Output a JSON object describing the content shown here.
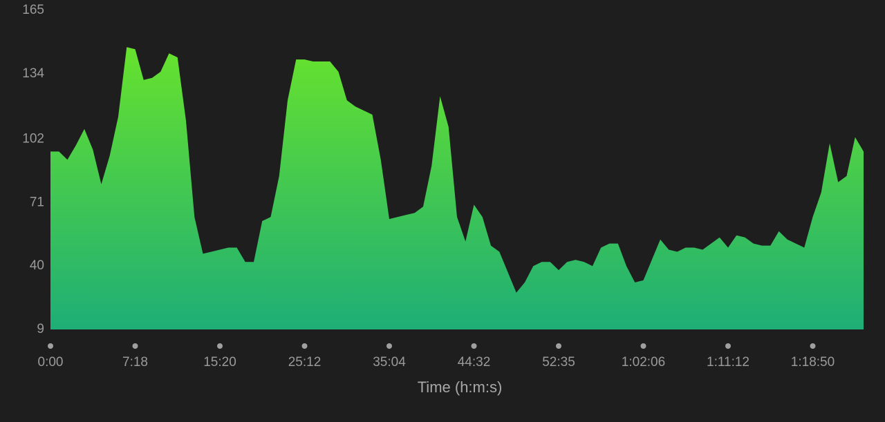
{
  "chart_data": {
    "type": "area",
    "x_label": "Time (h:m:s)",
    "x": [
      0,
      1,
      2,
      3,
      4,
      5,
      6,
      7,
      8,
      9,
      10,
      11,
      12,
      13,
      14,
      15,
      16,
      17,
      18,
      19,
      20,
      21,
      22,
      23,
      24,
      25,
      26,
      27,
      28,
      29,
      30,
      31,
      32,
      33,
      34,
      35,
      36,
      37,
      38,
      39,
      40,
      41,
      42,
      43,
      44,
      45,
      46,
      47,
      48,
      49,
      50,
      51,
      52,
      53,
      54,
      55,
      56,
      57,
      58,
      59,
      60,
      61,
      62,
      63,
      64,
      65,
      66,
      67,
      68,
      69,
      70,
      71,
      72,
      73,
      74,
      75,
      76,
      77,
      78,
      79,
      80,
      81,
      82,
      83,
      84,
      85,
      86,
      87,
      88,
      89,
      90,
      91,
      92,
      93,
      94,
      95,
      96
    ],
    "values": [
      96,
      96,
      92,
      99,
      107,
      97,
      80,
      94,
      113,
      147,
      146,
      131,
      132,
      135,
      144,
      142,
      111,
      64,
      46,
      47,
      48,
      49,
      49,
      42,
      42,
      62,
      64,
      84,
      121,
      141,
      141,
      140,
      140,
      140,
      135,
      121,
      118,
      116,
      114,
      92,
      63,
      64,
      65,
      66,
      69,
      89,
      123,
      108,
      64,
      52,
      70,
      64,
      50,
      47,
      37,
      27,
      32,
      40,
      42,
      42,
      38,
      42,
      43,
      42,
      40,
      49,
      51,
      51,
      40,
      32,
      33,
      43,
      53,
      48,
      47,
      49,
      49,
      48,
      51,
      54,
      49,
      55,
      54,
      51,
      50,
      50,
      57,
      53,
      51,
      49,
      64,
      76,
      100,
      81,
      84,
      103,
      96
    ],
    "colors": [
      "#67e22d",
      "#1eae76"
    ],
    "xlim": [
      0,
      96
    ],
    "xticks": [
      {
        "value": 0,
        "label": "0:00"
      },
      {
        "value": 10,
        "label": "7:18"
      },
      {
        "value": 20,
        "label": "15:20"
      },
      {
        "value": 30,
        "label": "25:12"
      },
      {
        "value": 40,
        "label": "35:04"
      },
      {
        "value": 50,
        "label": "44:32"
      },
      {
        "value": 60,
        "label": "52:35"
      },
      {
        "value": 70,
        "label": "1:02:06"
      },
      {
        "value": 80,
        "label": "1:11:12"
      },
      {
        "value": 90,
        "label": "1:18:50"
      }
    ],
    "ylim": [
      9,
      165
    ],
    "yticks": [
      9,
      40,
      71,
      102,
      134,
      165
    ]
  }
}
